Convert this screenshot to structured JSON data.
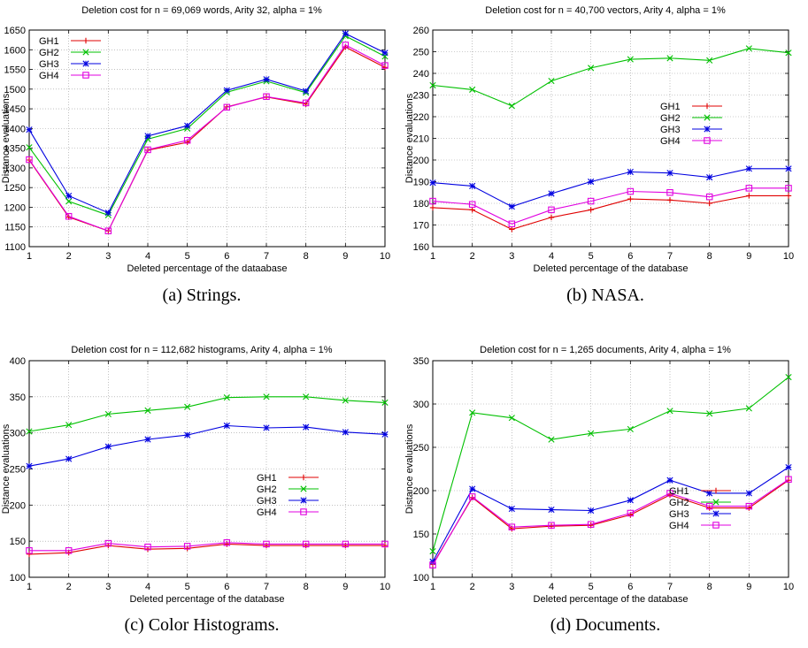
{
  "chart_data": [
    {
      "type": "line",
      "title": "Deletion cost for n = 69,069 words, Arity 32, alpha = 1%",
      "xlabel": "Deleted percentage of the dataabase",
      "ylabel": "Distance evaluations",
      "caption": "(a)  Strings.",
      "x": [
        1,
        2,
        3,
        4,
        5,
        6,
        7,
        8,
        9,
        10
      ],
      "xlim": [
        1,
        10
      ],
      "ylim": [
        1100,
        1650
      ],
      "yticks": [
        1100,
        1150,
        1200,
        1250,
        1300,
        1350,
        1400,
        1450,
        1500,
        1550,
        1600,
        1650
      ],
      "grid": true,
      "legend_position": "top-left",
      "series": [
        {
          "name": "GH1",
          "color": "#e00000",
          "marker": "+",
          "values": [
            1320,
            1175,
            1140,
            1345,
            1365,
            1455,
            1480,
            1462,
            1607,
            1555
          ]
        },
        {
          "name": "GH2",
          "color": "#00c000",
          "marker": "x",
          "values": [
            1352,
            1215,
            1180,
            1373,
            1400,
            1492,
            1520,
            1491,
            1635,
            1583
          ]
        },
        {
          "name": "GH3",
          "color": "#0000e0",
          "marker": "*",
          "values": [
            1397,
            1229,
            1186,
            1381,
            1407,
            1497,
            1525,
            1495,
            1641,
            1592
          ]
        },
        {
          "name": "GH4",
          "color": "#e000e0",
          "marker": "square",
          "values": [
            1321,
            1177,
            1140,
            1346,
            1370,
            1454,
            1481,
            1465,
            1612,
            1560
          ]
        }
      ]
    },
    {
      "type": "line",
      "title": "Deletion cost for n = 40,700 vectors, Arity 4, alpha = 1%",
      "xlabel": "Deleted percentage of the database",
      "ylabel": "Distance evaluations",
      "caption": "(b)  NASA.",
      "x": [
        1,
        2,
        3,
        4,
        5,
        6,
        7,
        8,
        9,
        10
      ],
      "xlim": [
        1,
        10
      ],
      "ylim": [
        160,
        260
      ],
      "yticks": [
        160,
        170,
        180,
        190,
        200,
        210,
        220,
        230,
        240,
        250,
        260
      ],
      "grid": true,
      "legend_position": "center-right",
      "series": [
        {
          "name": "GH1",
          "color": "#e00000",
          "marker": "+",
          "values": [
            178,
            177,
            168,
            173.5,
            177,
            182,
            181.5,
            180,
            183.5,
            183.5
          ]
        },
        {
          "name": "GH2",
          "color": "#00c000",
          "marker": "x",
          "values": [
            234.5,
            232.5,
            225,
            236.5,
            242.5,
            246.5,
            247,
            246,
            251.5,
            249.5
          ]
        },
        {
          "name": "GH3",
          "color": "#0000e0",
          "marker": "*",
          "values": [
            189.5,
            188,
            178.5,
            184.5,
            190,
            194.5,
            194,
            192,
            196,
            196
          ]
        },
        {
          "name": "GH4",
          "color": "#e000e0",
          "marker": "square",
          "values": [
            181,
            179.5,
            170.5,
            177,
            181,
            185.5,
            185,
            183,
            187,
            187
          ]
        }
      ]
    },
    {
      "type": "line",
      "title": "Deletion cost for n = 112,682 histograms, Arity 4, alpha = 1%",
      "xlabel": "Deleted percentage of the database",
      "ylabel": "Distance evaluations",
      "caption": "(c)  Color Histograms.",
      "x": [
        1,
        2,
        3,
        4,
        5,
        6,
        7,
        8,
        9,
        10
      ],
      "xlim": [
        1,
        10
      ],
      "ylim": [
        100,
        400
      ],
      "yticks": [
        100,
        150,
        200,
        250,
        300,
        350,
        400
      ],
      "grid": true,
      "legend_position": "center-right",
      "series": [
        {
          "name": "GH1",
          "color": "#e00000",
          "marker": "+",
          "values": [
            132,
            134,
            144,
            139,
            140,
            146,
            144,
            144,
            144,
            144
          ]
        },
        {
          "name": "GH2",
          "color": "#00c000",
          "marker": "x",
          "values": [
            302,
            311,
            326,
            331,
            336,
            349,
            350,
            350,
            345,
            342
          ]
        },
        {
          "name": "GH3",
          "color": "#0000e0",
          "marker": "*",
          "values": [
            254,
            264,
            281,
            291,
            297,
            310,
            307,
            308,
            301,
            298
          ]
        },
        {
          "name": "GH4",
          "color": "#e000e0",
          "marker": "square",
          "values": [
            137,
            137,
            147,
            142,
            143,
            148,
            146,
            146,
            146,
            146
          ]
        }
      ]
    },
    {
      "type": "line",
      "title": "Deletion cost for n = 1,265 documents, Arity 4, alpha = 1%",
      "xlabel": "Deleted percentage of the database",
      "ylabel": "Distance evaluations",
      "caption": "(d)  Documents.",
      "x": [
        1,
        2,
        3,
        4,
        5,
        6,
        7,
        8,
        9,
        10
      ],
      "xlim": [
        1,
        10
      ],
      "ylim": [
        100,
        350
      ],
      "yticks": [
        100,
        150,
        200,
        250,
        300,
        350
      ],
      "grid": true,
      "legend_position": "bottom-right",
      "series": [
        {
          "name": "GH1",
          "color": "#e00000",
          "marker": "+",
          "values": [
            115,
            192,
            156,
            159,
            160,
            172,
            195,
            180,
            180,
            212
          ]
        },
        {
          "name": "GH2",
          "color": "#00c000",
          "marker": "x",
          "values": [
            130,
            290,
            284,
            259,
            266,
            271,
            292,
            289,
            295,
            331
          ]
        },
        {
          "name": "GH3",
          "color": "#0000e0",
          "marker": "*",
          "values": [
            118,
            202,
            179,
            178,
            177,
            189,
            212,
            197,
            197,
            227
          ]
        },
        {
          "name": "GH4",
          "color": "#e000e0",
          "marker": "square",
          "values": [
            114,
            193,
            158,
            160,
            161,
            174,
            197,
            182,
            182,
            213
          ]
        }
      ]
    }
  ]
}
